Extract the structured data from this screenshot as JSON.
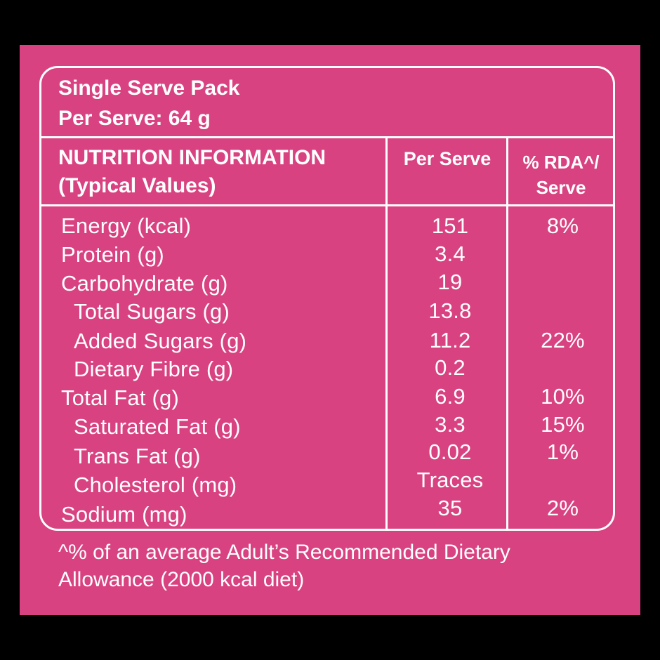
{
  "header": {
    "title": "Single Serve Pack",
    "serve_size": "Per Serve: 64 g"
  },
  "table": {
    "col1_heading_line1": "NUTRITION INFORMATION",
    "col1_heading_line2": "(Typical Values)",
    "col2_heading": "Per Serve",
    "col3_heading_line1": "% RDA^/",
    "col3_heading_line2": "Serve",
    "rows": [
      {
        "label": "Energy (kcal)",
        "value": "151",
        "rda": "8%"
      },
      {
        "label": "Protein (g)",
        "value": "3.4",
        "rda": ""
      },
      {
        "label": "Carbohydrate (g)",
        "value": "19",
        "rda": ""
      },
      {
        "label": "Total Sugars (g)",
        "value": "13.8",
        "rda": ""
      },
      {
        "label": "Added Sugars (g)",
        "value": "11.2",
        "rda": "22%"
      },
      {
        "label": "Dietary Fibre (g)",
        "value": "0.2",
        "rda": ""
      },
      {
        "label": "Total Fat (g)",
        "value": "6.9",
        "rda": "10%"
      },
      {
        "label": "Saturated Fat (g)",
        "value": "3.3",
        "rda": "15%"
      },
      {
        "label": "Trans Fat (g)",
        "value": "0.02",
        "rda": "1%"
      },
      {
        "label": "Cholesterol (mg)",
        "value": "Traces",
        "rda": ""
      },
      {
        "label": "Sodium (mg)",
        "value": "35",
        "rda": "2%"
      }
    ]
  },
  "footnote": {
    "line1": "^% of an average Adult’s Recommended Dietary",
    "line2": "Allowance (2000 kcal diet)"
  },
  "colors": {
    "background": "#000000",
    "panel": "#d94280",
    "text": "#ffffff"
  }
}
